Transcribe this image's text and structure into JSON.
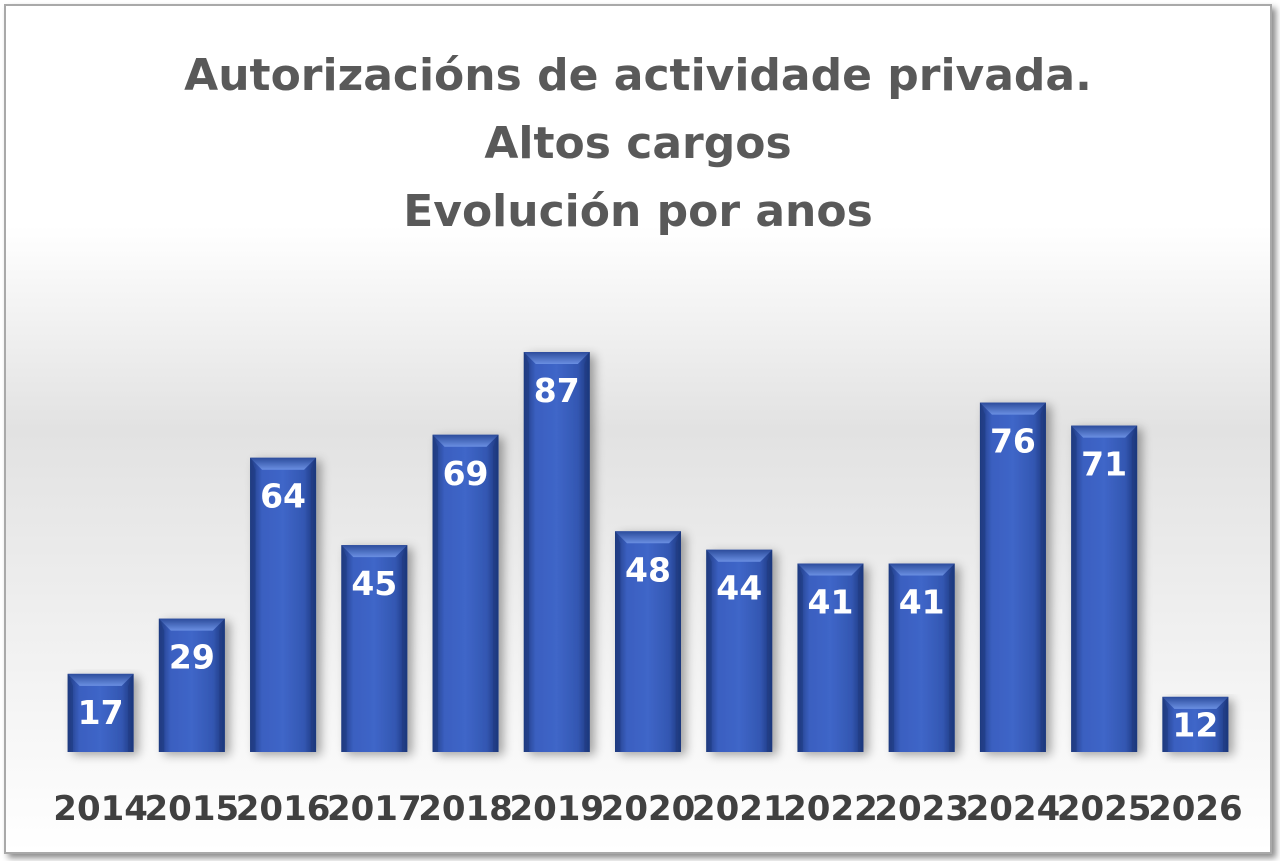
{
  "chart_data": {
    "type": "bar",
    "title_lines": [
      "Autorizacións de actividade privada.",
      "Altos cargos",
      "Evolución por anos"
    ],
    "categories": [
      "2014",
      "2015",
      "2016",
      "2017",
      "2018",
      "2019",
      "2020",
      "2021",
      "2022",
      "2023",
      "2024",
      "2025",
      "2026"
    ],
    "values": [
      17,
      29,
      64,
      45,
      69,
      87,
      48,
      44,
      41,
      41,
      76,
      71,
      12
    ],
    "data_labels": true,
    "grid": false,
    "legend": "none",
    "ylim": [
      0,
      87
    ],
    "colors": {
      "bar": "#3559b4",
      "bar_light": "#5c82d8",
      "bar_dark": "#1f3a80",
      "title": "#595959",
      "tick": "#404040",
      "label": "#ffffff"
    }
  }
}
